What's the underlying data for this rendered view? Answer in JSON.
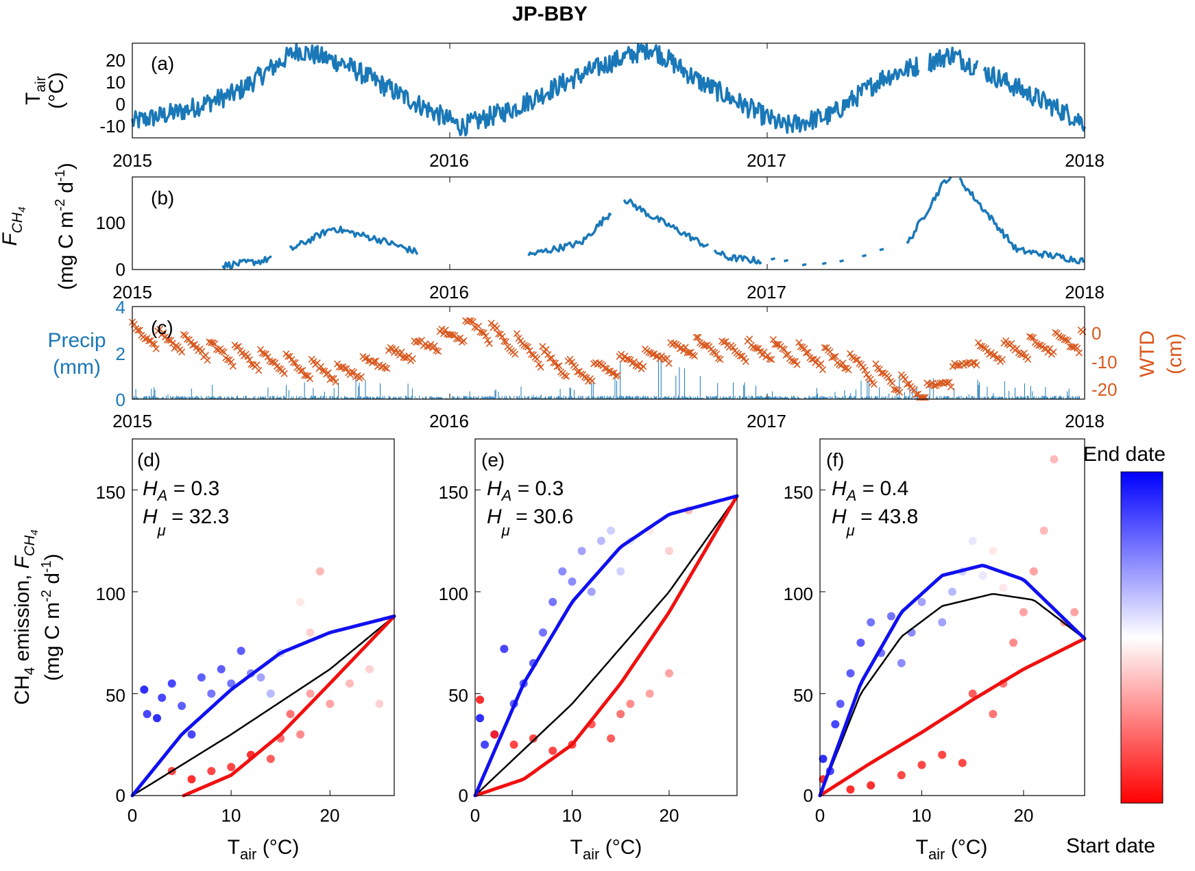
{
  "figure_title": "JP-BBY",
  "colors": {
    "tair": "#1a78b8",
    "fch4": "#1a78b8",
    "precip": "#1a78b8",
    "wtd": "#d9581e",
    "fit_hot": "#1010f0",
    "fit_cold": "#f01010",
    "fit_mid": "#000000"
  },
  "timeseries_axis": {
    "year_ticks": [
      "2015",
      "2016",
      "2017",
      "2018"
    ]
  },
  "panel_a": {
    "label": "(a)",
    "ylabel_main": "T",
    "ylabel_sub": "air",
    "ylabel_unit": "(°C)",
    "yticks": [
      "20",
      "10",
      "0",
      "-10"
    ]
  },
  "panel_b": {
    "label": "(b)",
    "ylabel_f": "F",
    "ylabel_sub": "CH",
    "ylabel_subsub": "4",
    "ylabel_unit": "(mg C m",
    "ylabel_exp1": "-2",
    "ylabel_mid": " d",
    "ylabel_exp2": "-1",
    "ylabel_end": ")",
    "yticks": [
      "100",
      "0"
    ]
  },
  "panel_c": {
    "label": "(c)",
    "left_label_1": "Precip",
    "left_label_2": "(mm)",
    "right_label_1": "WTD",
    "right_label_2": "(cm)",
    "left_yticks": [
      "4",
      "2",
      "0"
    ],
    "right_yticks": [
      "0",
      "-10",
      "-20"
    ]
  },
  "scatter_shared": {
    "xlabel_main": "T",
    "xlabel_sub": "air",
    "xlabel_unit": " (°C)",
    "xticks": [
      "0",
      "10",
      "20"
    ],
    "yticks": [
      "0",
      "50",
      "100",
      "150"
    ],
    "ylabel_line1_a": "CH",
    "ylabel_line1_b": "4",
    "ylabel_line1_c": " emission,  ",
    "ylabel_line1_f": "F",
    "ylabel_line1_sub": "CH",
    "ylabel_line1_subsub": "4",
    "ylabel_line2": "(mg C m",
    "ylabel_line2_exp1": "-2",
    "ylabel_line2_mid": " d",
    "ylabel_line2_exp2": "-1",
    "ylabel_line2_end": ")"
  },
  "panel_d": {
    "label": "(d)",
    "ha_label": "H",
    "ha_sub": "A",
    "ha_value": " = 0.3",
    "hmu_label": "H",
    "hmu_sub": "μ",
    "hmu_value": " = 32.3"
  },
  "panel_e": {
    "label": "(e)",
    "ha_label": "H",
    "ha_sub": "A",
    "ha_value": " = 0.3",
    "hmu_label": "H",
    "hmu_sub": "μ",
    "hmu_value": " = 30.6"
  },
  "panel_f": {
    "label": "(f)",
    "ha_label": "H",
    "ha_sub": "A",
    "ha_value": " = 0.4",
    "hmu_label": "H",
    "hmu_sub": "μ",
    "hmu_value": " = 43.8"
  },
  "colorbar": {
    "top_label": "End date",
    "bottom_label": "Start date",
    "top_color": "#0000ff",
    "mid_color": "#ffffff",
    "bottom_color": "#ff0000"
  },
  "chart_data": [
    {
      "id": "a",
      "type": "line",
      "title": "",
      "x": [
        "2015-01-01",
        "2015-03-01",
        "2015-05-01",
        "2015-07-10",
        "2015-09-01",
        "2015-11-01",
        "2016-01-15",
        "2016-03-15",
        "2016-05-15",
        "2016-07-01",
        "2016-08-20",
        "2016-10-15",
        "2017-01-20",
        "2017-03-15",
        "2017-05-15",
        "2017-08-01",
        "2017-10-01",
        "2017-12-31"
      ],
      "series": [
        {
          "values": [
            -8,
            -3,
            5,
            24,
            18,
            5,
            -10,
            -2,
            10,
            18,
            25,
            10,
            -10,
            -5,
            12,
            22,
            10,
            -8
          ]
        }
      ],
      "gaps": [
        [
          "2017-06-25",
          "2017-07-05"
        ],
        [
          "2017-09-01",
          "2017-09-07"
        ]
      ],
      "ylim": [
        -15,
        27
      ],
      "xlim": [
        "2015-01-01",
        "2018-01-01"
      ]
    },
    {
      "id": "b",
      "type": "line",
      "title": "",
      "x": [
        "2015-04-15",
        "2015-06-01",
        "2015-07-01",
        "2015-08-20",
        "2015-10-15",
        "2015-11-25",
        "2016-04-01",
        "2016-06-01",
        "2016-07-20",
        "2016-08-20",
        "2016-10-01",
        "2016-11-15",
        "2017-03-01",
        "2017-06-10",
        "2017-07-25",
        "2017-08-10",
        "2017-10-15",
        "2017-12-31"
      ],
      "series": [
        {
          "values": [
            8,
            18,
            40,
            85,
            60,
            35,
            30,
            55,
            145,
            110,
            70,
            25,
            5,
            50,
            185,
            185,
            40,
            18
          ]
        }
      ],
      "ylim": [
        0,
        190
      ],
      "xlim": [
        "2015-01-01",
        "2018-01-01"
      ]
    },
    {
      "id": "c",
      "type": "line",
      "title": "",
      "x": [
        "2015-01-01",
        "2015-06-01",
        "2015-09-01",
        "2016-02-01",
        "2016-06-01",
        "2016-08-01",
        "2016-10-01",
        "2017-01-01",
        "2017-04-01",
        "2017-07-01",
        "2017-09-01",
        "2017-12-31"
      ],
      "series": [
        {
          "name": "Precip",
          "values": [
            0.1,
            0.3,
            0.6,
            0.1,
            0.3,
            3.9,
            0.8,
            0.2,
            0.3,
            1.2,
            0.5,
            0.1
          ]
        },
        {
          "name": "WTD",
          "values": [
            0,
            -8,
            -12,
            2,
            -12,
            -8,
            -4,
            -5,
            -8,
            -18,
            -6,
            -2
          ]
        }
      ],
      "ylim_left": [
        0,
        4
      ],
      "ylim_right": [
        -22,
        5
      ],
      "xlim": [
        "2015-01-01",
        "2018-01-01"
      ]
    },
    {
      "id": "d",
      "type": "scatter",
      "title": "",
      "xlim": [
        0,
        26.5
      ],
      "ylim": [
        0,
        175
      ],
      "fits": {
        "hot": {
          "x": [
            0,
            5,
            10,
            15,
            20,
            26.5
          ],
          "y": [
            0,
            30,
            52,
            70,
            80,
            88
          ]
        },
        "mid": {
          "x": [
            0,
            10,
            20,
            26.5
          ],
          "y": [
            0,
            30,
            62,
            88
          ]
        },
        "cold": {
          "x": [
            5.2,
            10,
            15,
            20,
            26.5
          ],
          "y": [
            0,
            10,
            30,
            55,
            88
          ]
        }
      },
      "points": [
        [
          1.2,
          52,
          0.95
        ],
        [
          1.5,
          40,
          0.9
        ],
        [
          2.5,
          38,
          0.95
        ],
        [
          3,
          48,
          0.9
        ],
        [
          4,
          55,
          0.9
        ],
        [
          5,
          44,
          0.85
        ],
        [
          6,
          30,
          0.9
        ],
        [
          7,
          58,
          0.85
        ],
        [
          8,
          50,
          0.8
        ],
        [
          9,
          62,
          0.85
        ],
        [
          10,
          55,
          0.8
        ],
        [
          11,
          71,
          0.85
        ],
        [
          12,
          60,
          0.75
        ],
        [
          13,
          58,
          0.7
        ],
        [
          14,
          50,
          0.65
        ],
        [
          15,
          70,
          0.6
        ],
        [
          16,
          75,
          0.5
        ],
        [
          17,
          95,
          0.45
        ],
        [
          18,
          80,
          0.4
        ],
        [
          19,
          110,
          0.35
        ],
        [
          4,
          12,
          0.1
        ],
        [
          6,
          8,
          0.05
        ],
        [
          8,
          12,
          0.1
        ],
        [
          10,
          14,
          0.1
        ],
        [
          12,
          20,
          0.05
        ],
        [
          14,
          18,
          0.15
        ],
        [
          15,
          28,
          0.2
        ],
        [
          16,
          40,
          0.2
        ],
        [
          17,
          30,
          0.25
        ],
        [
          18,
          50,
          0.3
        ],
        [
          20,
          45,
          0.3
        ],
        [
          22,
          55,
          0.35
        ],
        [
          24,
          62,
          0.4
        ],
        [
          25,
          45,
          0.4
        ]
      ]
    },
    {
      "id": "e",
      "type": "scatter",
      "title": "",
      "xlim": [
        0,
        27
      ],
      "ylim": [
        0,
        175
      ],
      "fits": {
        "hot": {
          "x": [
            0,
            5,
            10,
            15,
            20,
            27
          ],
          "y": [
            0,
            55,
            95,
            122,
            138,
            147
          ]
        },
        "mid": {
          "x": [
            0,
            10,
            20,
            27
          ],
          "y": [
            0,
            45,
            100,
            147
          ]
        },
        "cold": {
          "x": [
            0,
            5,
            10,
            15,
            20,
            27
          ],
          "y": [
            0,
            8,
            25,
            55,
            90,
            147
          ]
        }
      },
      "points": [
        [
          0.5,
          38,
          0.95
        ],
        [
          1,
          25,
          0.9
        ],
        [
          2,
          30,
          0.9
        ],
        [
          3,
          72,
          0.9
        ],
        [
          4,
          45,
          0.85
        ],
        [
          5,
          55,
          0.85
        ],
        [
          6,
          65,
          0.85
        ],
        [
          7,
          80,
          0.8
        ],
        [
          8,
          95,
          0.8
        ],
        [
          9,
          110,
          0.75
        ],
        [
          10,
          105,
          0.75
        ],
        [
          11,
          120,
          0.7
        ],
        [
          12,
          100,
          0.7
        ],
        [
          13,
          125,
          0.65
        ],
        [
          14,
          130,
          0.6
        ],
        [
          15,
          110,
          0.6
        ],
        [
          16,
          125,
          0.55
        ],
        [
          17,
          115,
          0.5
        ],
        [
          18,
          130,
          0.45
        ],
        [
          20,
          120,
          0.4
        ],
        [
          22,
          140,
          0.35
        ],
        [
          0.5,
          47,
          0.05
        ],
        [
          2,
          30,
          0.05
        ],
        [
          4,
          25,
          0.1
        ],
        [
          6,
          28,
          0.1
        ],
        [
          8,
          22,
          0.1
        ],
        [
          10,
          25,
          0.1
        ],
        [
          12,
          35,
          0.15
        ],
        [
          14,
          28,
          0.15
        ],
        [
          15,
          40,
          0.2
        ],
        [
          16,
          45,
          0.25
        ],
        [
          18,
          50,
          0.3
        ],
        [
          20,
          60,
          0.3
        ]
      ]
    },
    {
      "id": "f",
      "type": "scatter",
      "title": "",
      "xlim": [
        0,
        26
      ],
      "ylim": [
        0,
        175
      ],
      "fits": {
        "hot": {
          "x": [
            0,
            4,
            8,
            12,
            16,
            20,
            26
          ],
          "y": [
            0,
            55,
            90,
            108,
            113,
            106,
            77
          ]
        },
        "mid": {
          "x": [
            0,
            4,
            8,
            12,
            17,
            21,
            26
          ],
          "y": [
            0,
            50,
            78,
            93,
            99,
            96,
            77
          ]
        },
        "cold": {
          "x": [
            0,
            5,
            10,
            15,
            20,
            26
          ],
          "y": [
            0,
            16,
            31,
            47,
            62,
            77
          ]
        }
      },
      "points": [
        [
          0.3,
          18,
          0.95
        ],
        [
          1,
          12,
          0.9
        ],
        [
          1.5,
          35,
          0.9
        ],
        [
          2,
          45,
          0.85
        ],
        [
          3,
          60,
          0.85
        ],
        [
          4,
          75,
          0.85
        ],
        [
          5,
          85,
          0.8
        ],
        [
          6,
          70,
          0.8
        ],
        [
          7,
          88,
          0.8
        ],
        [
          8,
          65,
          0.75
        ],
        [
          9,
          80,
          0.75
        ],
        [
          10,
          95,
          0.7
        ],
        [
          12,
          85,
          0.7
        ],
        [
          13,
          100,
          0.65
        ],
        [
          14,
          110,
          0.6
        ],
        [
          15,
          125,
          0.55
        ],
        [
          16,
          108,
          0.55
        ],
        [
          17,
          120,
          0.45
        ],
        [
          18,
          102,
          0.45
        ],
        [
          0.3,
          8,
          0.05
        ],
        [
          3,
          3,
          0.05
        ],
        [
          5,
          5,
          0.05
        ],
        [
          8,
          10,
          0.1
        ],
        [
          10,
          15,
          0.1
        ],
        [
          12,
          20,
          0.1
        ],
        [
          14,
          16,
          0.1
        ],
        [
          15,
          50,
          0.15
        ],
        [
          17,
          40,
          0.2
        ],
        [
          18,
          55,
          0.2
        ],
        [
          19,
          75,
          0.25
        ],
        [
          20,
          90,
          0.3
        ],
        [
          21,
          110,
          0.3
        ],
        [
          22,
          130,
          0.35
        ],
        [
          23,
          165,
          0.35
        ],
        [
          24,
          85,
          0.3
        ],
        [
          25,
          90,
          0.3
        ]
      ]
    }
  ]
}
